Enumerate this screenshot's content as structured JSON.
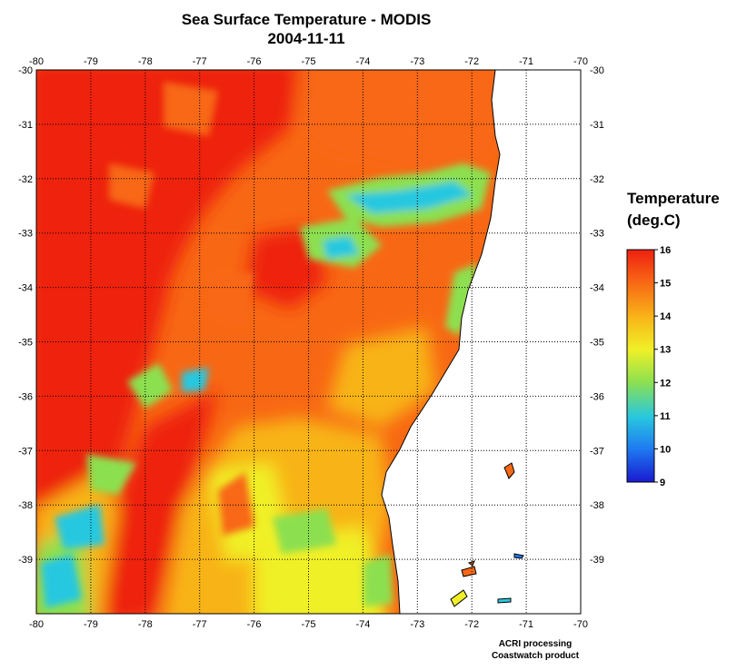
{
  "title": {
    "line1": "Sea Surface Temperature - MODIS",
    "line2": "2004-11-11"
  },
  "map": {
    "lon_ticks": [
      "-80",
      "-79",
      "-78",
      "-77",
      "-76",
      "-75",
      "-74",
      "-73",
      "-72",
      "-71",
      "-70"
    ],
    "lat_ticks": [
      "-30",
      "-31",
      "-32",
      "-33",
      "-34",
      "-35",
      "-36",
      "-37",
      "-38",
      "-39"
    ],
    "lon_range": [
      -80,
      -70
    ],
    "lat_range": [
      -40,
      -30
    ],
    "grid": "dotted",
    "land_color": "#ffffff",
    "coastline_color": "#000000"
  },
  "colorbar": {
    "title_line1": "Temperature",
    "title_line2": "(deg.C)",
    "ticks": [
      "16",
      "15",
      "14",
      "13",
      "12",
      "11",
      "10",
      "9"
    ],
    "range": [
      9,
      16
    ],
    "colors": [
      "#1a1ad0",
      "#1e78f0",
      "#28c8e0",
      "#8ce050",
      "#f0f028",
      "#f8b418",
      "#f86814",
      "#ee2010"
    ]
  },
  "credits": {
    "line1": "ACRI processing",
    "line2": "Coastwatch product"
  }
}
